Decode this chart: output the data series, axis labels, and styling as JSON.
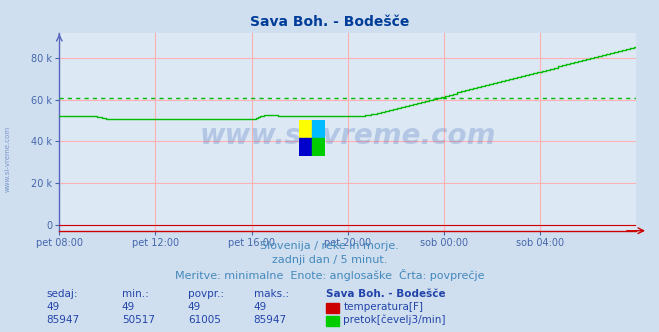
{
  "title": "Sava Boh. - Bodešče",
  "title_color": "#003d99",
  "title_fontsize": 10,
  "bg_color": "#d0dff0",
  "plot_bg_color": "#dde8f5",
  "grid_color_h": "#ffb0b0",
  "grid_color_v": "#ffb0b0",
  "axis_left_color": "#5566bb",
  "axis_bottom_color": "#cc0000",
  "tick_color": "#4466aa",
  "ylabel_ticks": [
    "0",
    "20 k",
    "40 k",
    "60 k",
    "80 k"
  ],
  "ylabel_vals": [
    0,
    20000,
    40000,
    60000,
    80000
  ],
  "ylim": [
    -3000,
    92000
  ],
  "xlim_hours": [
    0,
    24
  ],
  "xtick_labels": [
    "pet 08:00",
    "pet 12:00",
    "pet 16:00",
    "pet 20:00",
    "sob 00:00",
    "sob 04:00"
  ],
  "xtick_positions": [
    0,
    4,
    8,
    12,
    16,
    20
  ],
  "temp_color": "#cc0000",
  "flow_color": "#00bb00",
  "avg_color": "#00bb00",
  "watermark_text_color": "#2255aa",
  "subtitle_lines": [
    "Slovenija / reke in morje.",
    "zadnji dan / 5 minut.",
    "Meritve: minimalne  Enote: anglosaške  Črta: povprečje"
  ],
  "subtitle_color": "#4488bb",
  "subtitle_fontsize": 8,
  "table_header": [
    "sedaj:",
    "min.:",
    "povpr.:",
    "maks.:",
    "Sava Boh. - Bodešče"
  ],
  "table_row1": [
    "49",
    "49",
    "49",
    "49"
  ],
  "table_row2": [
    "85947",
    "50517",
    "61005",
    "85947"
  ],
  "table_color": "#2244aa",
  "avg_flow": 61005,
  "side_label": "www.si-vreme.com",
  "side_label_color": "#5577bb"
}
